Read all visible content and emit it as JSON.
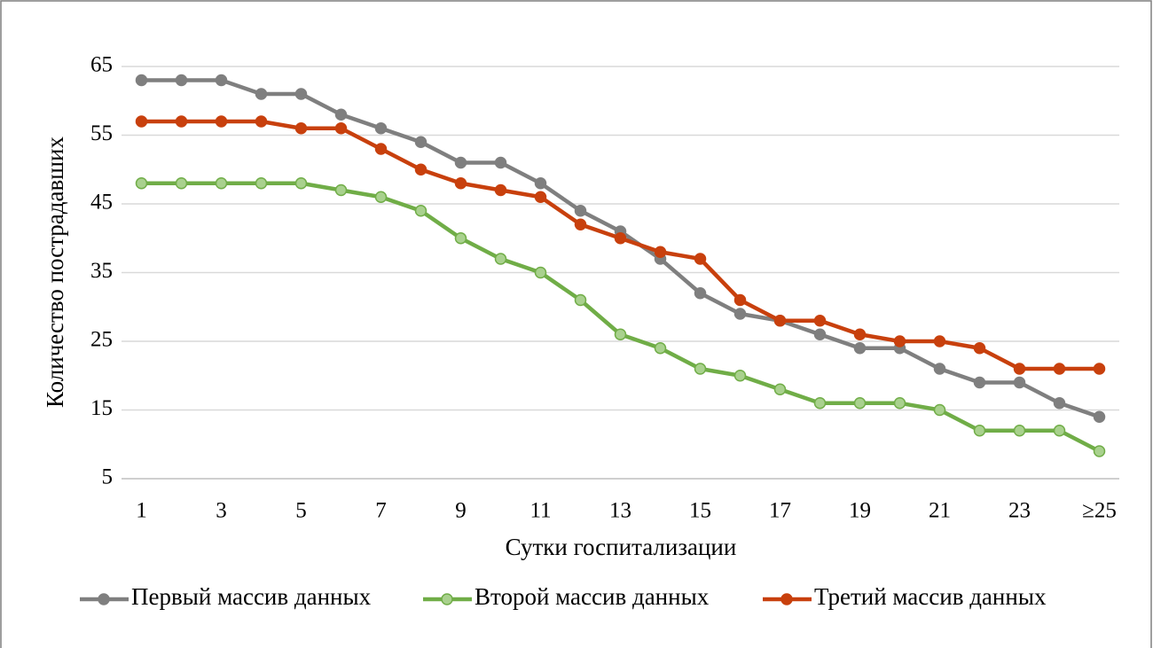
{
  "chart_data": {
    "type": "line",
    "xlabel": "Сутки госпитализации",
    "ylabel": "Количество пострадавших",
    "categories": [
      "1",
      null,
      "3",
      null,
      "5",
      null,
      "7",
      null,
      "9",
      null,
      "11",
      null,
      "13",
      null,
      "15",
      null,
      "17",
      null,
      "19",
      null,
      "21",
      null,
      "23",
      null,
      "≥25"
    ],
    "series": [
      {
        "name": "Первый массив данных",
        "color": "#7f7f7f",
        "marker_color": "#7f7f7f",
        "values": [
          63,
          63,
          63,
          61,
          61,
          58,
          56,
          54,
          51,
          51,
          48,
          44,
          41,
          37,
          32,
          29,
          28,
          26,
          24,
          24,
          21,
          19,
          19,
          16,
          14
        ]
      },
      {
        "name": "Второй массив данных",
        "color": "#70ad47",
        "marker_color": "#a9d18e",
        "values": [
          48,
          48,
          48,
          48,
          48,
          47,
          46,
          44,
          40,
          37,
          35,
          31,
          26,
          24,
          21,
          20,
          18,
          16,
          16,
          16,
          15,
          12,
          12,
          12,
          9
        ]
      },
      {
        "name": "Третий массив данных",
        "color": "#c8400d",
        "marker_color": "#c8400d",
        "values": [
          57,
          57,
          57,
          57,
          56,
          56,
          53,
          50,
          48,
          47,
          46,
          42,
          40,
          38,
          37,
          31,
          28,
          28,
          26,
          25,
          25,
          24,
          21,
          21,
          21
        ]
      }
    ],
    "ylim": [
      5,
      65
    ],
    "yticks": [
      5,
      15,
      25,
      35,
      45,
      55,
      65
    ],
    "grid": true,
    "legend": "bottom"
  }
}
